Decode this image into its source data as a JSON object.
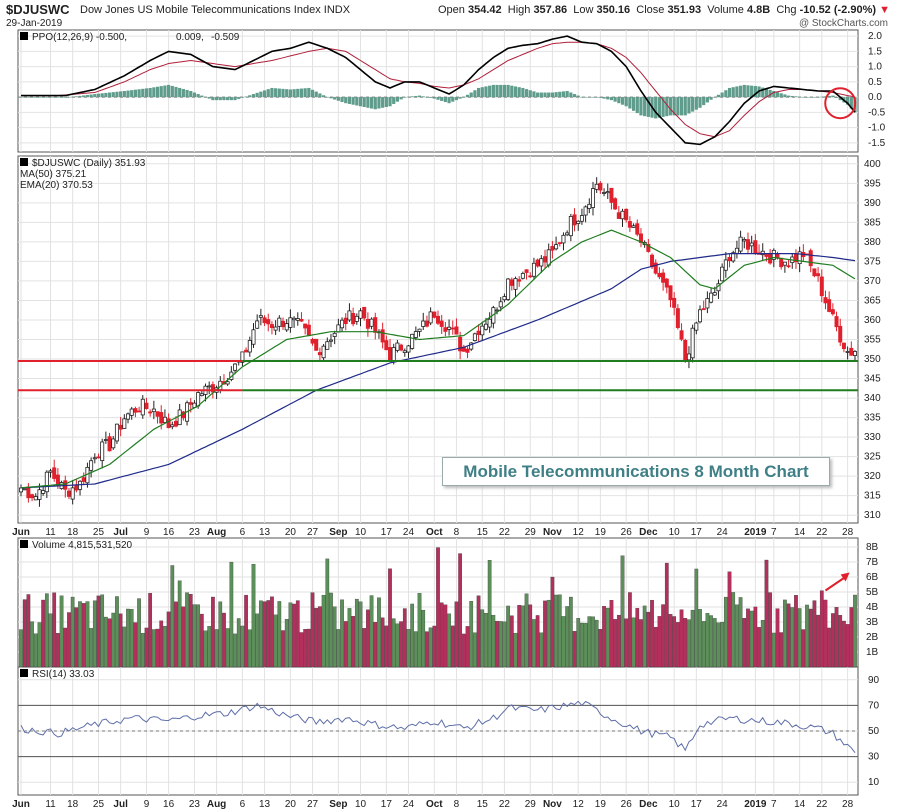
{
  "header": {
    "symbol": "$DJUSWC",
    "name": "Dow Jones US Mobile Telecommunications Index",
    "exchange": "INDX",
    "date": "29-Jan-2019",
    "open_label": "Open",
    "open": "354.42",
    "high_label": "High",
    "high": "357.86",
    "low_label": "Low",
    "low": "350.16",
    "close_label": "Close",
    "close": "351.93",
    "volume_label": "Volume",
    "volume": "4.8B",
    "chg_label": "Chg",
    "chg": "-10.52 (-2.90%)",
    "chg_icon": "down-triangle-icon",
    "brand": "@ StockCharts.com"
  },
  "callout": "Mobile Telecommunications 8 Month Chart",
  "colors": {
    "up": "#ffffff",
    "down": "#e0202c",
    "ma50": "#1f2a8a",
    "ema20": "#1f7d1f",
    "ppo_line": "#000000",
    "ppo_signal": "#b0203a",
    "ppo_hist": "#5f9c8c",
    "vol_up": "#5d8f5a",
    "vol_down": "#b4305c",
    "rsi": "#5f6fa8",
    "support": "#1f7d1f",
    "resistance": "#e0202c"
  },
  "chart_data": [
    {
      "type": "line",
      "panel": "PPO",
      "legend": [
        {
          "label": "PPO(12,26,9)",
          "value": "-0.500"
        },
        {
          "label": "",
          "value": "0.009"
        },
        {
          "label": "",
          "value": "-0.509"
        }
      ],
      "ylim": [
        -1.8,
        2.2
      ],
      "yticks": [
        "2.0",
        "1.5",
        "1.0",
        "0.5",
        "0.0",
        "-0.5",
        "-1.0",
        "-1.5"
      ],
      "ppo": [
        [
          0,
          0.05
        ],
        [
          6,
          0.05
        ],
        [
          12,
          0.05
        ],
        [
          20,
          0.25
        ],
        [
          28,
          0.7
        ],
        [
          35,
          1.2
        ],
        [
          40,
          1.5
        ],
        [
          46,
          1.4
        ],
        [
          52,
          1.0
        ],
        [
          58,
          0.9
        ],
        [
          63,
          1.2
        ],
        [
          68,
          1.5
        ],
        [
          73,
          1.6
        ],
        [
          78,
          1.8
        ],
        [
          83,
          1.6
        ],
        [
          88,
          1.3
        ],
        [
          92,
          0.9
        ],
        [
          96,
          0.5
        ],
        [
          100,
          0.3
        ],
        [
          104,
          0.5
        ],
        [
          108,
          0.5
        ],
        [
          112,
          0.3
        ],
        [
          116,
          0.1
        ],
        [
          120,
          0.4
        ],
        [
          124,
          0.9
        ],
        [
          128,
          1.3
        ],
        [
          132,
          1.6
        ],
        [
          136,
          1.7
        ],
        [
          140,
          1.75
        ],
        [
          144,
          1.9
        ],
        [
          148,
          2.0
        ],
        [
          152,
          1.8
        ],
        [
          156,
          1.75
        ],
        [
          160,
          1.5
        ],
        [
          164,
          1.0
        ],
        [
          168,
          0.2
        ],
        [
          172,
          -0.5
        ],
        [
          176,
          -1.0
        ],
        [
          180,
          -1.5
        ],
        [
          184,
          -1.55
        ],
        [
          188,
          -1.3
        ],
        [
          192,
          -0.8
        ],
        [
          196,
          -0.2
        ],
        [
          200,
          0.2
        ],
        [
          204,
          0.35
        ],
        [
          208,
          0.3
        ],
        [
          212,
          0.25
        ],
        [
          216,
          0.2
        ],
        [
          220,
          0.2
        ],
        [
          224,
          -0.2
        ],
        [
          226,
          -0.5
        ]
      ],
      "signal": [
        [
          0,
          0.05
        ],
        [
          10,
          0.05
        ],
        [
          20,
          0.15
        ],
        [
          28,
          0.5
        ],
        [
          35,
          0.9
        ],
        [
          40,
          1.1
        ],
        [
          46,
          1.2
        ],
        [
          52,
          1.1
        ],
        [
          58,
          1.0
        ],
        [
          63,
          1.1
        ],
        [
          68,
          1.2
        ],
        [
          73,
          1.35
        ],
        [
          78,
          1.5
        ],
        [
          83,
          1.6
        ],
        [
          88,
          1.5
        ],
        [
          92,
          1.2
        ],
        [
          96,
          0.9
        ],
        [
          100,
          0.6
        ],
        [
          104,
          0.5
        ],
        [
          108,
          0.45
        ],
        [
          112,
          0.35
        ],
        [
          116,
          0.3
        ],
        [
          120,
          0.4
        ],
        [
          124,
          0.6
        ],
        [
          128,
          0.9
        ],
        [
          132,
          1.2
        ],
        [
          136,
          1.4
        ],
        [
          140,
          1.6
        ],
        [
          144,
          1.75
        ],
        [
          148,
          1.8
        ],
        [
          152,
          1.8
        ],
        [
          156,
          1.75
        ],
        [
          160,
          1.6
        ],
        [
          164,
          1.3
        ],
        [
          168,
          0.8
        ],
        [
          172,
          0.2
        ],
        [
          176,
          -0.4
        ],
        [
          180,
          -0.9
        ],
        [
          184,
          -1.2
        ],
        [
          188,
          -1.3
        ],
        [
          192,
          -1.1
        ],
        [
          196,
          -0.6
        ],
        [
          200,
          -0.15
        ],
        [
          204,
          0.15
        ],
        [
          208,
          0.25
        ],
        [
          212,
          0.25
        ],
        [
          216,
          0.2
        ],
        [
          220,
          0.15
        ],
        [
          224,
          0.05
        ],
        [
          226,
          0.0
        ]
      ]
    },
    {
      "type": "candlestick",
      "panel": "Price",
      "legend": [
        {
          "label": "$DJUSWC (Daily)",
          "value": "351.93"
        },
        {
          "label": "MA(50)",
          "value": "375.21"
        },
        {
          "label": "EMA(20)",
          "value": "370.53"
        }
      ],
      "ylim": [
        308,
        402
      ],
      "yticks": [
        "400",
        "395",
        "390",
        "385",
        "380",
        "375",
        "370",
        "365",
        "360",
        "355",
        "350",
        "345",
        "340",
        "335",
        "330",
        "325",
        "320",
        "315",
        "310"
      ],
      "anchors": [
        [
          0,
          317
        ],
        [
          4,
          315
        ],
        [
          8,
          321
        ],
        [
          12,
          316
        ],
        [
          16,
          318
        ],
        [
          20,
          326
        ],
        [
          24,
          328
        ],
        [
          28,
          335
        ],
        [
          32,
          338
        ],
        [
          36,
          337
        ],
        [
          40,
          333
        ],
        [
          44,
          336
        ],
        [
          48,
          341
        ],
        [
          52,
          343
        ],
        [
          56,
          346
        ],
        [
          60,
          350
        ],
        [
          64,
          360
        ],
        [
          68,
          359
        ],
        [
          72,
          360
        ],
        [
          76,
          358
        ],
        [
          80,
          352
        ],
        [
          84,
          356
        ],
        [
          88,
          360
        ],
        [
          92,
          362
        ],
        [
          96,
          357
        ],
        [
          100,
          351
        ],
        [
          104,
          354
        ],
        [
          108,
          357
        ],
        [
          112,
          362
        ],
        [
          116,
          358
        ],
        [
          120,
          352
        ],
        [
          124,
          358
        ],
        [
          128,
          362
        ],
        [
          132,
          370
        ],
        [
          136,
          372
        ],
        [
          140,
          374
        ],
        [
          144,
          377
        ],
        [
          148,
          384
        ],
        [
          152,
          388
        ],
        [
          156,
          395
        ],
        [
          160,
          390
        ],
        [
          164,
          385
        ],
        [
          168,
          380
        ],
        [
          172,
          372
        ],
        [
          176,
          365
        ],
        [
          180,
          350
        ],
        [
          184,
          362
        ],
        [
          188,
          367
        ],
        [
          192,
          377
        ],
        [
          196,
          380
        ],
        [
          200,
          378
        ],
        [
          204,
          376
        ],
        [
          208,
          375
        ],
        [
          212,
          377
        ],
        [
          216,
          370
        ],
        [
          220,
          360
        ],
        [
          224,
          352
        ],
        [
          226,
          351.93
        ]
      ],
      "ma50": [
        [
          0,
          317
        ],
        [
          20,
          318
        ],
        [
          40,
          323
        ],
        [
          60,
          332
        ],
        [
          80,
          342
        ],
        [
          100,
          349
        ],
        [
          120,
          353
        ],
        [
          140,
          360
        ],
        [
          160,
          368
        ],
        [
          168,
          373
        ],
        [
          176,
          375
        ],
        [
          184,
          376
        ],
        [
          192,
          377
        ],
        [
          200,
          377
        ],
        [
          210,
          377
        ],
        [
          220,
          376
        ],
        [
          226,
          375.21
        ]
      ],
      "ema20": [
        [
          0,
          317
        ],
        [
          12,
          318
        ],
        [
          24,
          323
        ],
        [
          36,
          332
        ],
        [
          48,
          338
        ],
        [
          60,
          348
        ],
        [
          72,
          355
        ],
        [
          84,
          357
        ],
        [
          96,
          357
        ],
        [
          108,
          355
        ],
        [
          120,
          356
        ],
        [
          132,
          364
        ],
        [
          144,
          375
        ],
        [
          152,
          380
        ],
        [
          160,
          383
        ],
        [
          168,
          380
        ],
        [
          176,
          376
        ],
        [
          184,
          369
        ],
        [
          188,
          368
        ],
        [
          196,
          374
        ],
        [
          204,
          376
        ],
        [
          212,
          375
        ],
        [
          220,
          374
        ],
        [
          226,
          370.53
        ]
      ],
      "levels": [
        {
          "value": 349.5,
          "kind": "support",
          "resistance_from_x": 0
        },
        {
          "value": 342,
          "kind": "support",
          "resistance_from_x": 0
        }
      ]
    },
    {
      "type": "bar",
      "panel": "Volume",
      "legend": [
        {
          "label": "Volume",
          "value": "4,815,531,520"
        }
      ],
      "ylim": [
        0,
        8.6
      ],
      "yticks": [
        "8B",
        "7B",
        "6B",
        "5B",
        "4B",
        "3B",
        "2B",
        "1B"
      ]
    },
    {
      "type": "line",
      "panel": "RSI",
      "legend": [
        {
          "label": "RSI(14)",
          "value": "33.03"
        }
      ],
      "ylim": [
        0,
        100
      ],
      "yticks": [
        "90",
        "70",
        "50",
        "30",
        "10"
      ],
      "rsi": [
        [
          0,
          52
        ],
        [
          10,
          48
        ],
        [
          20,
          55
        ],
        [
          30,
          60
        ],
        [
          40,
          58
        ],
        [
          48,
          62
        ],
        [
          56,
          64
        ],
        [
          64,
          70
        ],
        [
          72,
          62
        ],
        [
          80,
          57
        ],
        [
          88,
          60
        ],
        [
          96,
          55
        ],
        [
          104,
          52
        ],
        [
          112,
          58
        ],
        [
          120,
          52
        ],
        [
          128,
          60
        ],
        [
          132,
          68
        ],
        [
          140,
          66
        ],
        [
          148,
          70
        ],
        [
          152,
          72
        ],
        [
          156,
          66
        ],
        [
          160,
          60
        ],
        [
          168,
          50
        ],
        [
          176,
          45
        ],
        [
          180,
          35
        ],
        [
          184,
          55
        ],
        [
          192,
          60
        ],
        [
          200,
          58
        ],
        [
          208,
          56
        ],
        [
          216,
          52
        ],
        [
          220,
          48
        ],
        [
          224,
          38
        ],
        [
          226,
          33.03
        ]
      ]
    }
  ],
  "x_axis": {
    "labels": [
      "Jun",
      "11",
      "18",
      "25",
      "Jul",
      "9",
      "16",
      "23",
      "Aug",
      "6",
      "13",
      "20",
      "27",
      "Sep",
      "10",
      "17",
      "24",
      "Oct",
      "8",
      "15",
      "22",
      "29",
      "Nov",
      "12",
      "19",
      "26",
      "Dec",
      "10",
      "17",
      "24",
      "2019",
      "7",
      "14",
      "22",
      "28"
    ]
  }
}
